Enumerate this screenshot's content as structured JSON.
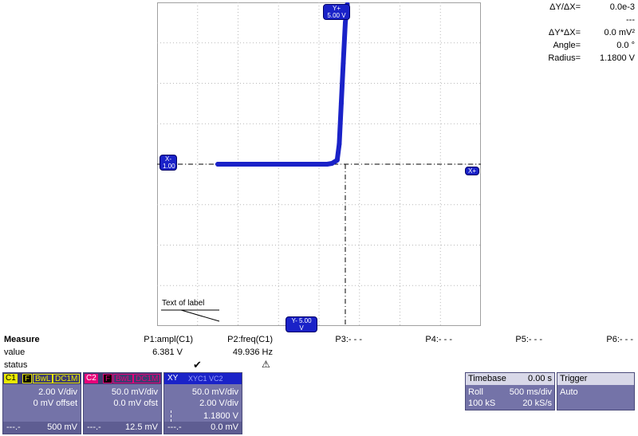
{
  "readouts": [
    {
      "label": "ΔY/ΔX=",
      "value": "0.0e-3"
    },
    {
      "label": "",
      "value": "---"
    },
    {
      "label": "ΔY*ΔX=",
      "value": "0.0 mV²"
    },
    {
      "label": "Angle=",
      "value": "0.0 °"
    },
    {
      "label": "Radius=",
      "value": "1.1800 V"
    }
  ],
  "grid_labels": {
    "top_marker": "Y+ 5.00 V",
    "left_marker": "X- 1.00",
    "right_marker": "X+",
    "bottom_marker": "Y- 5.00 V",
    "annotation": "Text of label"
  },
  "measure": {
    "title": "Measure",
    "row_value": "value",
    "row_status": "status",
    "params": [
      {
        "name": "P1:ampl(C1)",
        "value": "6.381 V",
        "status": "✔"
      },
      {
        "name": "P2:freq(C1)",
        "value": "49.936 Hz",
        "status": "⚠"
      },
      {
        "name": "P3:- - -",
        "value": "",
        "status": ""
      },
      {
        "name": "P4:- - -",
        "value": "",
        "status": ""
      },
      {
        "name": "P5:- - -",
        "value": "",
        "status": ""
      },
      {
        "name": "P6:- - -",
        "value": "",
        "status": ""
      }
    ]
  },
  "channels": {
    "c1": {
      "name": "C1",
      "f": "F",
      "bwl": "BwL",
      "coupling": "DC1M",
      "vdiv": "2.00 V/div",
      "offset": "0 mV offset",
      "foot_left": "---.-",
      "foot_right": "500 mV",
      "color": "#e8e800"
    },
    "c2": {
      "name": "C2",
      "f": "F",
      "bwl": "BwL",
      "coupling": "DC1M",
      "vdiv": "50.0 mV/div",
      "offset": "0.0 mV ofst",
      "foot_left": "---.-",
      "foot_right": "12.5 mV",
      "color": "#e8007a"
    },
    "xy": {
      "name": "XY",
      "title": "XYC1 VC2",
      "line1": "50.0 mV/div",
      "line2": "2.00 V/div",
      "line3": "1.1800 V",
      "foot_left": "---.-",
      "foot_right": "0.0 mV",
      "color": "#1a22c8"
    }
  },
  "timebase": {
    "title": "Timebase",
    "delay": "0.00 s",
    "mode": "Roll",
    "tdiv": "500 ms/div",
    "samples": "100 kS",
    "rate": "20 kS/s"
  },
  "trigger": {
    "title": "Trigger",
    "mode": "Auto"
  },
  "chart_data": {
    "type": "line",
    "x": [
      -2.5,
      -1.5,
      -0.5,
      0.0,
      0.2,
      0.32,
      0.45,
      0.5,
      0.55,
      0.6,
      0.65,
      0.7
    ],
    "y": [
      0.0,
      0.0,
      0.0,
      0.0,
      0.0,
      0.02,
      0.1,
      0.5,
      1.5,
      2.5,
      3.5,
      3.95
    ],
    "xlim": [
      -4,
      4
    ],
    "ylim": [
      -4,
      4
    ],
    "grid": true,
    "trace_color": "#1a22c8"
  }
}
